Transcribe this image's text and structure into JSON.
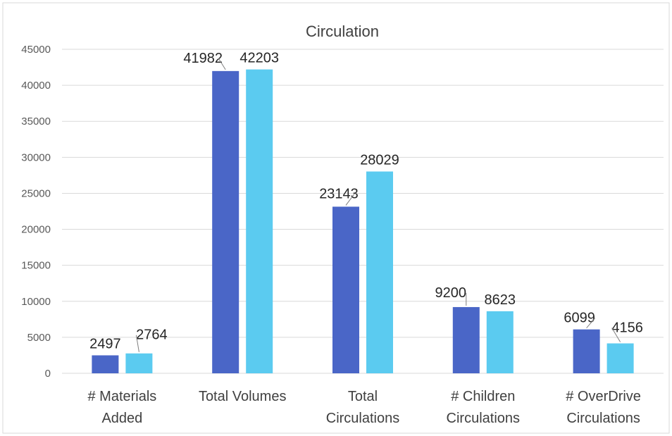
{
  "chart_data": {
    "type": "bar",
    "title": "Circulation",
    "xlabel": "",
    "ylabel": "",
    "categories": [
      [
        "# Materials",
        "Added"
      ],
      [
        "Total Volumes"
      ],
      [
        "Total",
        "Circulations"
      ],
      [
        "# Children",
        "Circulations"
      ],
      [
        "# OverDrive",
        "Circulations"
      ]
    ],
    "series": [
      {
        "values": [
          2497,
          41982,
          23143,
          9200,
          6099
        ],
        "color": "#4A66C7"
      },
      {
        "values": [
          2764,
          42203,
          28029,
          8623,
          4156
        ],
        "color": "#5BCBF0"
      }
    ],
    "ylim": [
      0,
      45000
    ],
    "yticks": [
      0,
      5000,
      10000,
      15000,
      20000,
      25000,
      30000,
      35000,
      40000,
      45000
    ],
    "grid": true,
    "legend": "none",
    "colors": {
      "gridline": "#D9D9D9",
      "frame": "#D9D9D9"
    }
  }
}
